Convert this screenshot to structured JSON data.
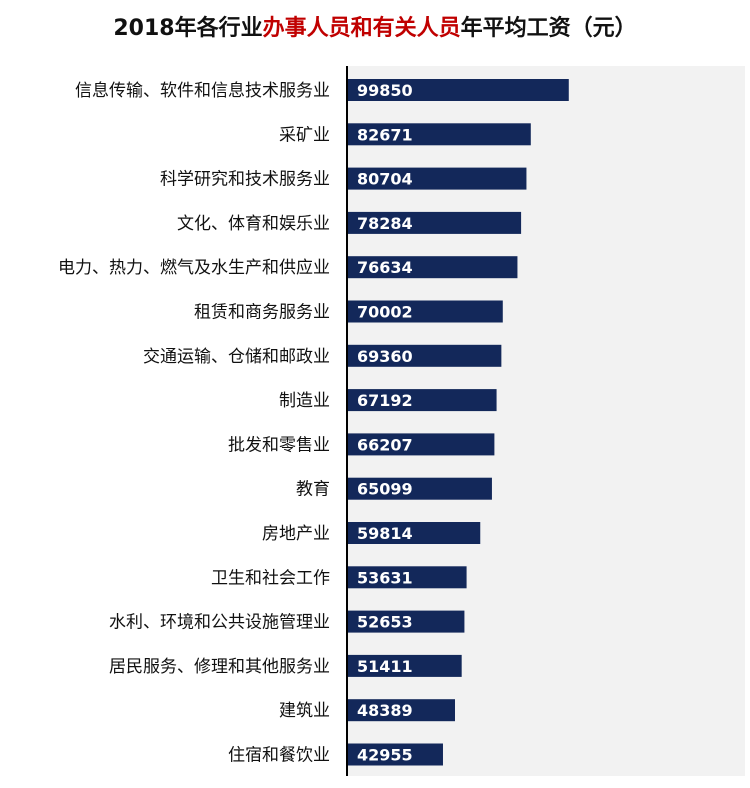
{
  "chart_data": {
    "type": "bar",
    "orientation": "horizontal",
    "title_parts": [
      {
        "text": "2018年各行业",
        "highlight": false
      },
      {
        "text": "办事人员和有关人员",
        "highlight": true
      },
      {
        "text": "年平均工资（元）",
        "highlight": false
      }
    ],
    "categories": [
      "信息传输、软件和信息技术服务业",
      "采矿业",
      "科学研究和技术服务业",
      "文化、体育和娱乐业",
      "电力、热力、燃气及水生产和供应业",
      "租赁和商务服务业",
      "交通运输、仓储和邮政业",
      "制造业",
      "批发和零售业",
      "教育",
      "房地产业",
      "卫生和社会工作",
      "水利、环境和公共设施管理业",
      "居民服务、修理和其他服务业",
      "建筑业",
      "住宿和餐饮业"
    ],
    "values": [
      99850,
      82671,
      80704,
      78284,
      76634,
      70002,
      69360,
      67192,
      66207,
      65099,
      59814,
      53631,
      52653,
      51411,
      48389,
      42955
    ],
    "xlim": [
      0,
      180000
    ],
    "data_labels": "inside-start",
    "grid": false,
    "legend": "none",
    "colors": {
      "bar": "#13285a",
      "plot_background": "#f2f2f2",
      "axis": "#000000",
      "title": "#111111",
      "title_highlight": "#c00000",
      "data_label": "#ffffff"
    }
  }
}
